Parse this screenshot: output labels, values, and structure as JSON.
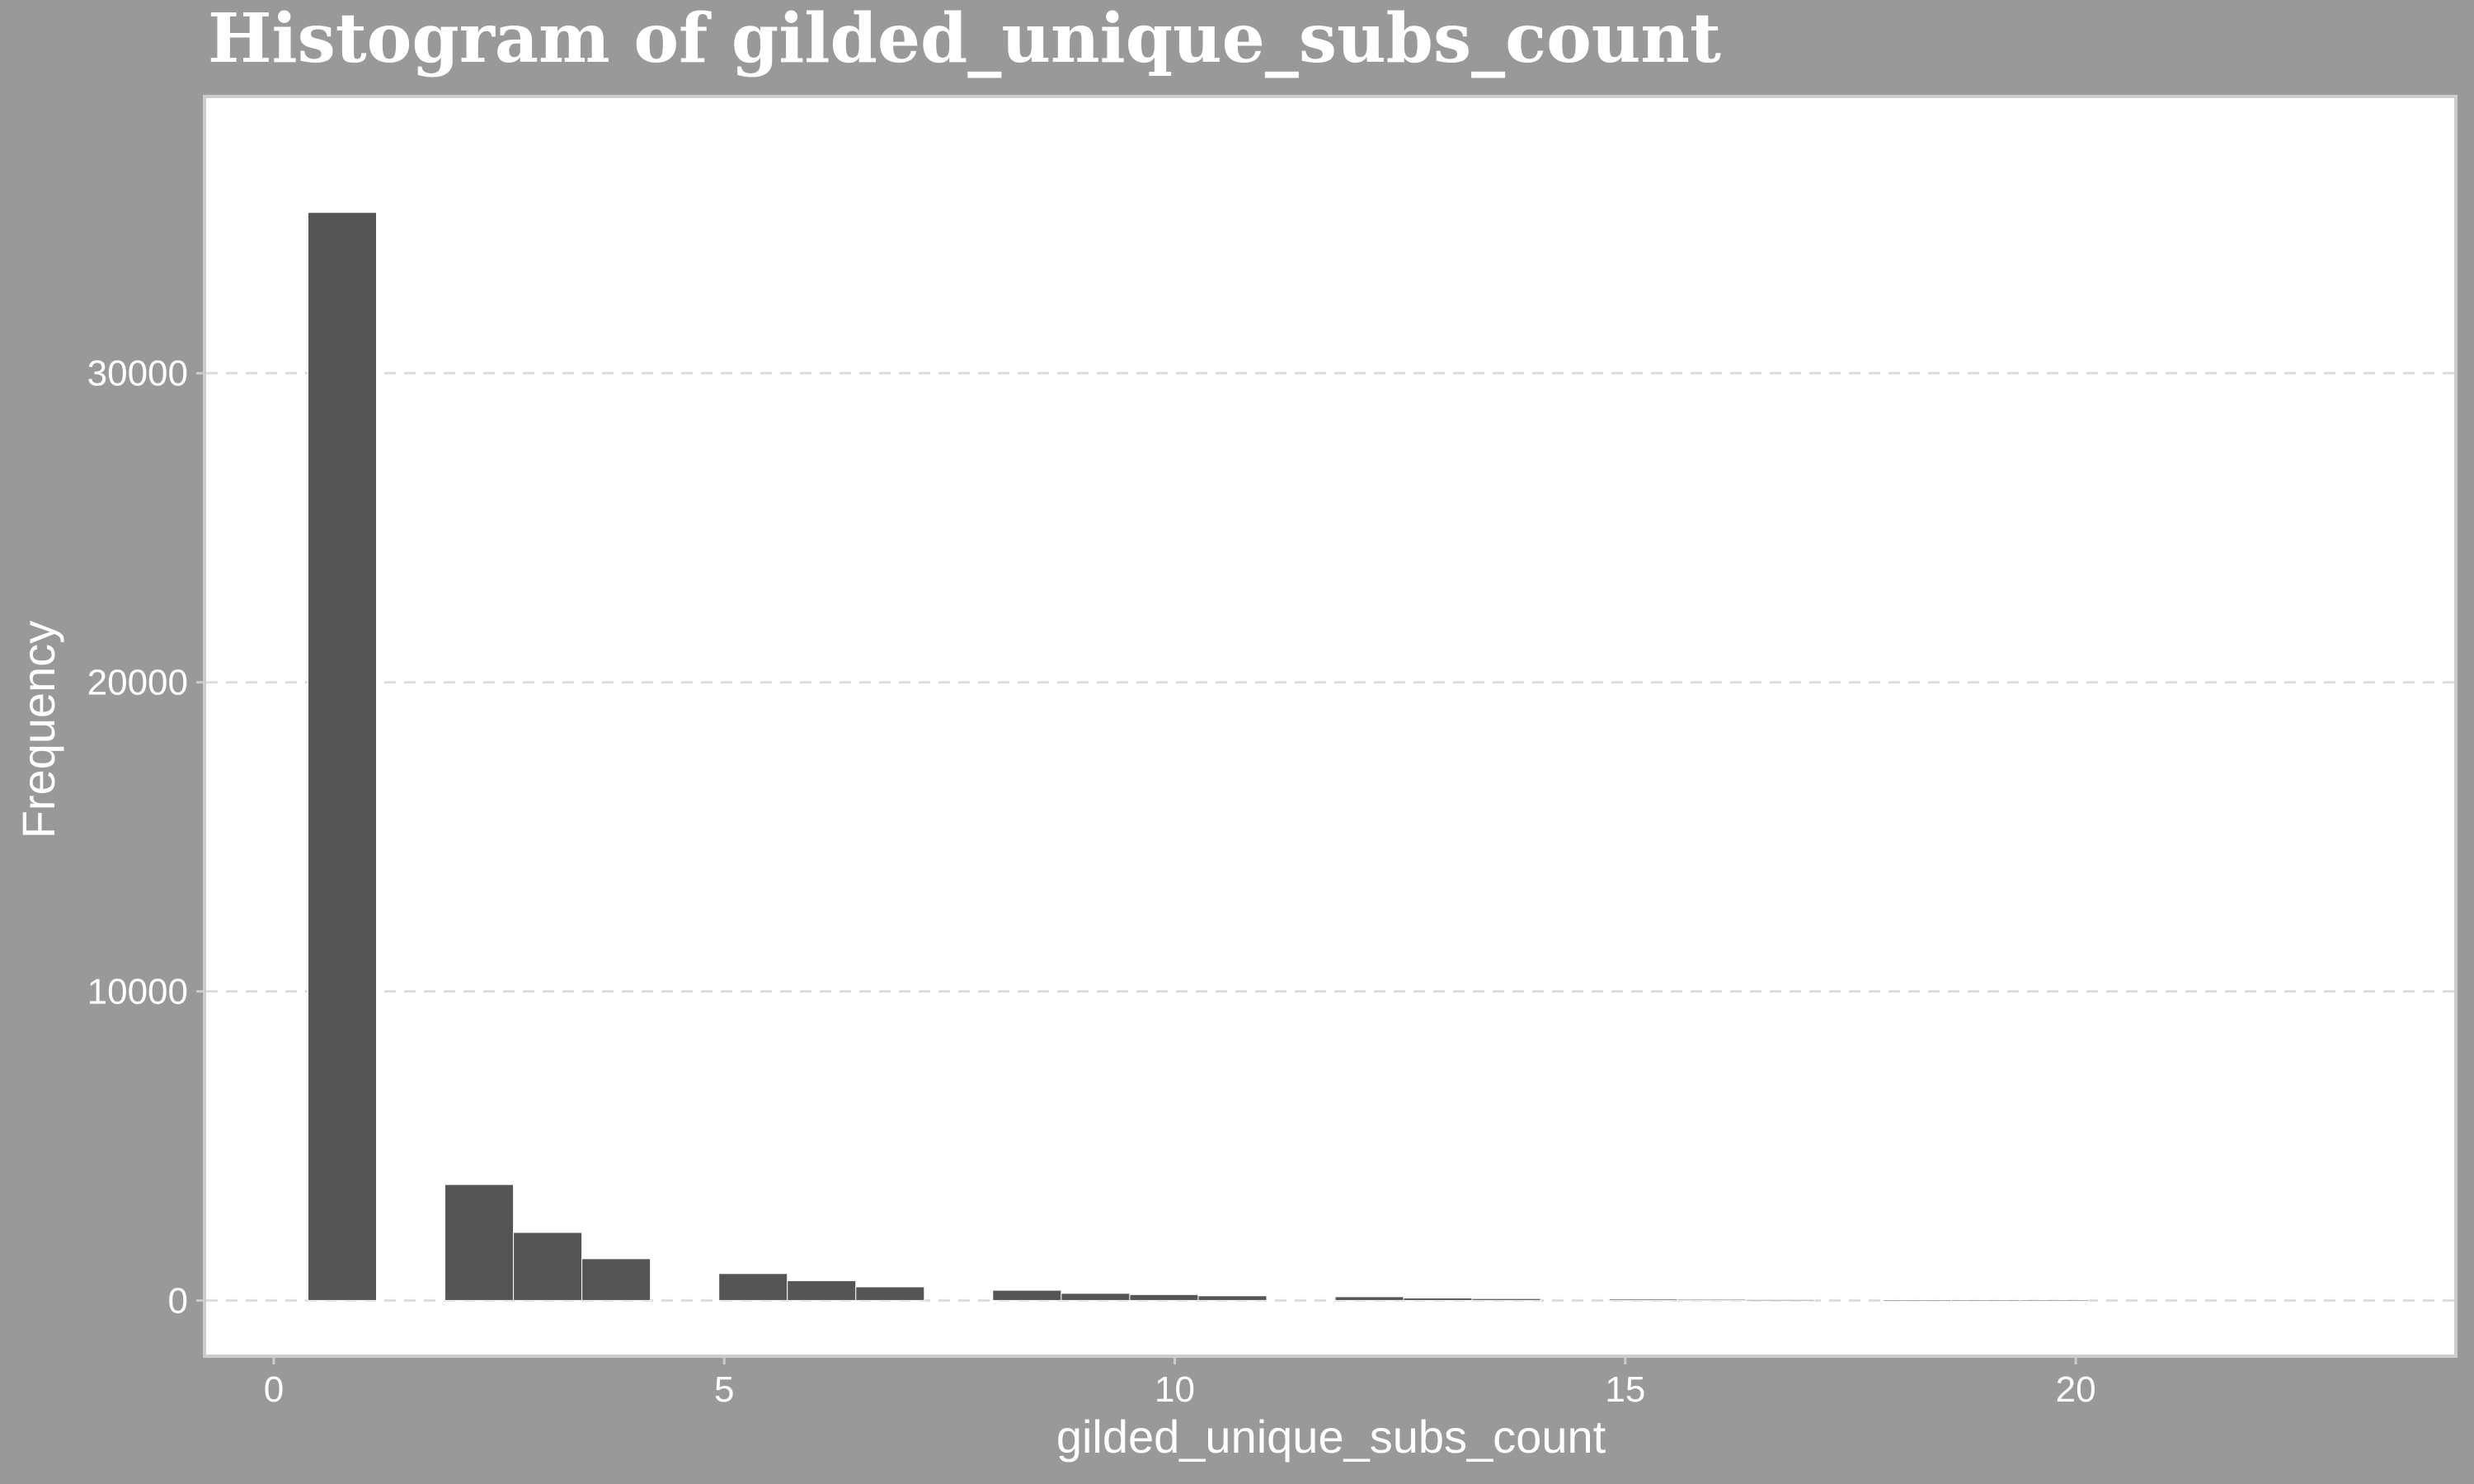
{
  "chart_data": {
    "type": "bar",
    "title": "Histogram of gilded_unique_subs_count",
    "xlabel": "gilded_unique_subs_count",
    "ylabel": "Frequency",
    "xlim": [
      -0.75,
      24.2
    ],
    "ylim": [
      -1750,
      38900
    ],
    "x_ticks": [
      0,
      5,
      10,
      15,
      20
    ],
    "y_ticks": [
      0,
      10000,
      20000,
      30000
    ],
    "grid": "horizontal-dashed",
    "bin_width": 0.76,
    "bars": [
      {
        "x0": 0.38,
        "value": 35200
      },
      {
        "x0": 1.9,
        "value": 3750
      },
      {
        "x0": 2.66,
        "value": 2200
      },
      {
        "x0": 3.42,
        "value": 1350
      },
      {
        "x0": 4.94,
        "value": 870
      },
      {
        "x0": 5.7,
        "value": 640
      },
      {
        "x0": 6.46,
        "value": 440
      },
      {
        "x0": 7.98,
        "value": 330
      },
      {
        "x0": 8.74,
        "value": 230
      },
      {
        "x0": 9.5,
        "value": 190
      },
      {
        "x0": 10.26,
        "value": 150
      },
      {
        "x0": 11.78,
        "value": 120
      },
      {
        "x0": 12.54,
        "value": 80
      },
      {
        "x0": 13.3,
        "value": 60
      },
      {
        "x0": 14.82,
        "value": 45
      },
      {
        "x0": 15.58,
        "value": 35
      },
      {
        "x0": 16.34,
        "value": 28
      },
      {
        "x0": 17.86,
        "value": 22
      },
      {
        "x0": 18.62,
        "value": 15
      },
      {
        "x0": 19.38,
        "value": 10
      }
    ],
    "colors": {
      "background": "#999999",
      "panel": "#ffffff",
      "bar": "#555555",
      "grid": "#dddddd",
      "text": "#ffffff"
    }
  }
}
